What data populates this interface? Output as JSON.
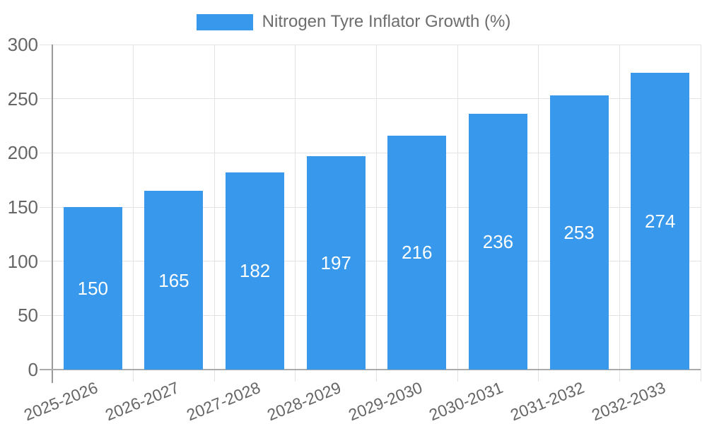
{
  "chart_data": {
    "type": "bar",
    "title": "Nitrogen Tyre Inflator Growth (%)",
    "legend_position": "top",
    "categories": [
      "2025-2026",
      "2026-2027",
      "2027-2028",
      "2028-2029",
      "2029-2030",
      "2030-2031",
      "2031-2032",
      "2032-2033"
    ],
    "values": [
      150,
      165,
      182,
      197,
      216,
      236,
      253,
      274
    ],
    "value_labels": [
      "150",
      "165",
      "182",
      "197",
      "216",
      "236",
      "253",
      "274"
    ],
    "xlabel": "",
    "ylabel": "",
    "ylim": [
      0,
      300
    ],
    "yticks": [
      0,
      50,
      100,
      150,
      200,
      250,
      300
    ],
    "grid": true,
    "colors": {
      "bar": "#3898ec",
      "value_label": "#ffffff",
      "tick_text": "#666666",
      "legend_text": "#6d6d6d",
      "grid_line": "#e3e3e3",
      "axis_line": "#9a9a9a",
      "baseline": "#ababab",
      "background": "#ffffff"
    }
  }
}
